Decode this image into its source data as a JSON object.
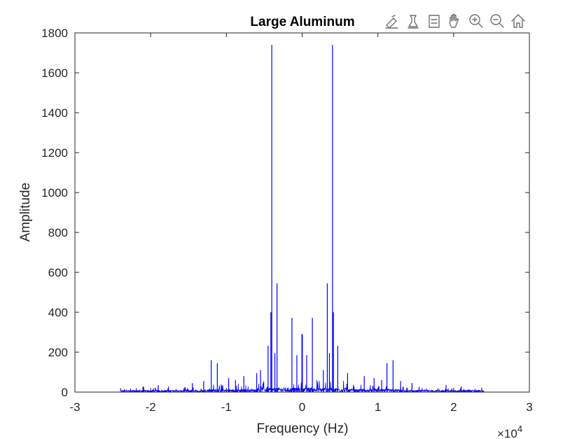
{
  "toolbar": {
    "items": [
      {
        "name": "brush-edit-icon"
      },
      {
        "name": "data-tips-icon"
      },
      {
        "name": "legend-icon"
      },
      {
        "name": "pan-hand-icon"
      },
      {
        "name": "zoom-in-icon"
      },
      {
        "name": "zoom-out-icon"
      },
      {
        "name": "home-icon"
      }
    ]
  },
  "chart_data": {
    "type": "line",
    "title": "Large Aluminum",
    "xlabel": "Frequency (Hz)",
    "ylabel": "Amplitude",
    "xlim": [
      -3,
      3
    ],
    "ylim": [
      0,
      1800
    ],
    "x_exponent_label": "×10",
    "x_exponent_power": "4",
    "xticks": [
      -3,
      -2,
      -1,
      0,
      1,
      2,
      3
    ],
    "yticks": [
      0,
      200,
      400,
      600,
      800,
      1000,
      1200,
      1400,
      1600,
      1800
    ],
    "grid": false,
    "legend": "none",
    "line_color": "#0000ff",
    "x_range_data": [
      -2.4,
      2.4
    ],
    "noise_floor": 12,
    "peaks": [
      {
        "x": -0.401,
        "y": 1740
      },
      {
        "x": 0.401,
        "y": 1740
      },
      {
        "x": -0.332,
        "y": 545
      },
      {
        "x": 0.332,
        "y": 545
      },
      {
        "x": -0.413,
        "y": 400
      },
      {
        "x": 0.413,
        "y": 400
      },
      {
        "x": -0.135,
        "y": 372
      },
      {
        "x": 0.135,
        "y": 372
      },
      {
        "x": -0.003,
        "y": 290
      },
      {
        "x": 0.003,
        "y": 290
      },
      {
        "x": -0.45,
        "y": 232
      },
      {
        "x": 0.47,
        "y": 232
      },
      {
        "x": -0.36,
        "y": 195
      },
      {
        "x": 0.36,
        "y": 195
      },
      {
        "x": -0.07,
        "y": 185
      },
      {
        "x": 0.06,
        "y": 185
      },
      {
        "x": -1.2,
        "y": 160
      },
      {
        "x": 1.2,
        "y": 160
      },
      {
        "x": -1.12,
        "y": 145
      },
      {
        "x": 1.12,
        "y": 145
      },
      {
        "x": -0.55,
        "y": 110
      },
      {
        "x": 0.28,
        "y": 110
      },
      {
        "x": -0.6,
        "y": 95
      },
      {
        "x": 0.6,
        "y": 95
      },
      {
        "x": -0.77,
        "y": 80
      },
      {
        "x": 0.82,
        "y": 80
      },
      {
        "x": -0.97,
        "y": 70
      },
      {
        "x": 0.95,
        "y": 70
      },
      {
        "x": -0.88,
        "y": 60
      },
      {
        "x": 1.05,
        "y": 60
      },
      {
        "x": -1.3,
        "y": 55
      },
      {
        "x": 1.3,
        "y": 55
      },
      {
        "x": -1.45,
        "y": 45
      },
      {
        "x": 1.45,
        "y": 45
      },
      {
        "x": -1.9,
        "y": 35
      },
      {
        "x": 1.9,
        "y": 35
      },
      {
        "x": -2.1,
        "y": 28
      },
      {
        "x": 2.1,
        "y": 28
      }
    ]
  }
}
